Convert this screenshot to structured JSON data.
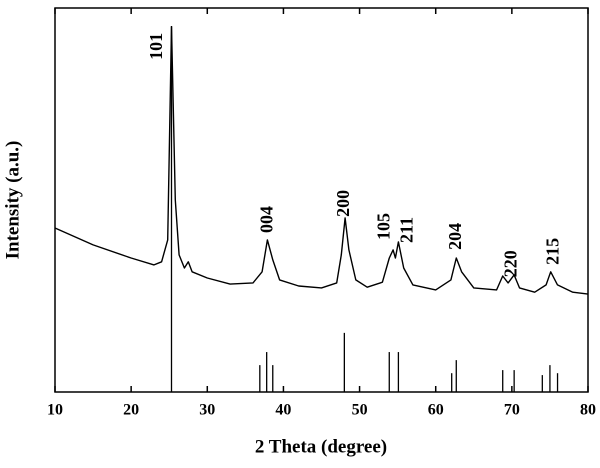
{
  "chart_data": {
    "type": "line",
    "xlabel": "2 Theta (degree)",
    "ylabel": "Intensity (a.u.)",
    "xlim": [
      10,
      80
    ],
    "xticks": [
      10,
      20,
      30,
      40,
      50,
      60,
      70,
      80
    ],
    "ylim": [
      0,
      100
    ],
    "color": "#000000",
    "x": [
      10,
      15,
      20,
      23,
      24,
      24.8,
      25.3,
      25.8,
      26.3,
      27,
      27.5,
      28,
      30,
      33,
      36,
      37.2,
      37.9,
      38.6,
      39.5,
      42,
      45,
      47,
      47.6,
      48.1,
      48.6,
      49.5,
      51,
      53,
      53.9,
      54.4,
      54.7,
      55.1,
      55.8,
      57,
      60,
      62,
      62.7,
      63.4,
      65,
      68,
      68.8,
      69.5,
      70.3,
      71,
      73,
      74.5,
      75.1,
      76,
      78,
      80
    ],
    "values": [
      42.7,
      38.3,
      34.9,
      33.1,
      33.9,
      39.6,
      95.1,
      50.0,
      35.7,
      32.3,
      33.9,
      31.3,
      29.7,
      28.1,
      28.4,
      31.3,
      39.6,
      34.4,
      29.2,
      27.6,
      27.1,
      28.4,
      35.7,
      45.3,
      37.0,
      29.2,
      27.3,
      28.6,
      34.9,
      37.0,
      34.9,
      39.1,
      32.3,
      27.9,
      26.6,
      29.2,
      34.9,
      31.3,
      27.1,
      26.6,
      30.2,
      28.4,
      30.5,
      27.1,
      26.0,
      27.9,
      31.3,
      27.9,
      26.0,
      25.5
    ],
    "reference": {
      "x": [
        25.3,
        36.9,
        37.8,
        38.6,
        48.0,
        53.9,
        55.1,
        62.1,
        62.7,
        68.8,
        70.3,
        74.0,
        75.0,
        76.0
      ],
      "values": [
        95.3,
        7.0,
        10.4,
        7.0,
        15.4,
        10.4,
        10.4,
        4.9,
        8.3,
        5.7,
        5.7,
        4.4,
        7.0,
        4.9
      ]
    },
    "annotations": [
      {
        "text": "101",
        "x": 23.5,
        "y": 86.5
      },
      {
        "text": "004",
        "x": 38.0,
        "y": 41.4
      },
      {
        "text": "200",
        "x": 48.1,
        "y": 45.6
      },
      {
        "text": "105",
        "x": 53.4,
        "y": 39.6
      },
      {
        "text": "211",
        "x": 56.4,
        "y": 38.8
      },
      {
        "text": "204",
        "x": 62.8,
        "y": 37.0
      },
      {
        "text": "220",
        "x": 70.1,
        "y": 29.9
      },
      {
        "text": "215",
        "x": 75.6,
        "y": 33.1
      }
    ]
  }
}
